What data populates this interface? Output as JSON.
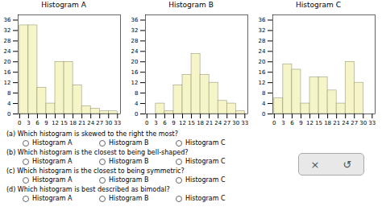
{
  "chart_data": [
    {
      "type": "histogram",
      "title": "Histogram A",
      "bins": [
        0,
        3,
        6,
        9,
        12,
        15,
        18,
        21,
        24,
        27,
        30,
        33
      ],
      "values": [
        34,
        34,
        10,
        4,
        20,
        20,
        11,
        3,
        2,
        1,
        1
      ],
      "color": "#f5f5c8",
      "xlim": [
        -0.5,
        34
      ],
      "xticks": [
        0,
        3,
        6,
        9,
        12,
        15,
        18,
        21,
        24,
        27,
        30,
        33
      ],
      "ylim": [
        0,
        38
      ],
      "yticks": [
        0,
        4,
        8,
        12,
        16,
        20,
        24,
        28,
        32,
        36
      ]
    },
    {
      "type": "histogram",
      "title": "Histogram B",
      "bins": [
        0,
        3,
        6,
        9,
        12,
        15,
        18,
        21,
        24,
        27,
        30,
        33
      ],
      "values": [
        0,
        4,
        1,
        11,
        15,
        23,
        15,
        12,
        5,
        4,
        1
      ],
      "color": "#f5f5c8",
      "xlim": [
        -0.5,
        34
      ],
      "xticks": [
        0,
        3,
        6,
        9,
        12,
        15,
        18,
        21,
        24,
        27,
        30,
        33
      ],
      "ylim": [
        0,
        38
      ],
      "yticks": [
        0,
        4,
        8,
        12,
        16,
        20,
        24,
        28,
        32,
        36
      ]
    },
    {
      "type": "histogram",
      "title": "Histogram C",
      "bins": [
        0,
        3,
        6,
        9,
        12,
        15,
        18,
        21,
        24,
        27,
        30,
        33
      ],
      "values": [
        6,
        19,
        17,
        4,
        14,
        14,
        9,
        4,
        20,
        12,
        0
      ],
      "color": "#f5f5c8",
      "xlim": [
        -0.5,
        34
      ],
      "xticks": [
        0,
        3,
        6,
        9,
        12,
        15,
        18,
        21,
        24,
        27,
        30,
        33
      ],
      "ylim": [
        0,
        38
      ],
      "yticks": [
        0,
        4,
        8,
        12,
        16,
        20,
        24,
        28,
        32,
        36
      ]
    }
  ],
  "annotations": [
    "(a) Which histogram is skewed to the right the most?",
    "Histogram A",
    "Histogram B",
    "Histogram C",
    "(b) Which histogram is the closest to being bell-shaped?",
    "Histogram A",
    "Histogram B",
    "Histogram C",
    "(c) Which histogram is the closest to being symmetric?",
    "Histogram A",
    "Histogram B",
    "Histogram C",
    "(d) Which histogram is best described as bimodal?",
    "Histogram A",
    "Histogram B",
    "Histogram C",
    "×",
    "↺"
  ]
}
